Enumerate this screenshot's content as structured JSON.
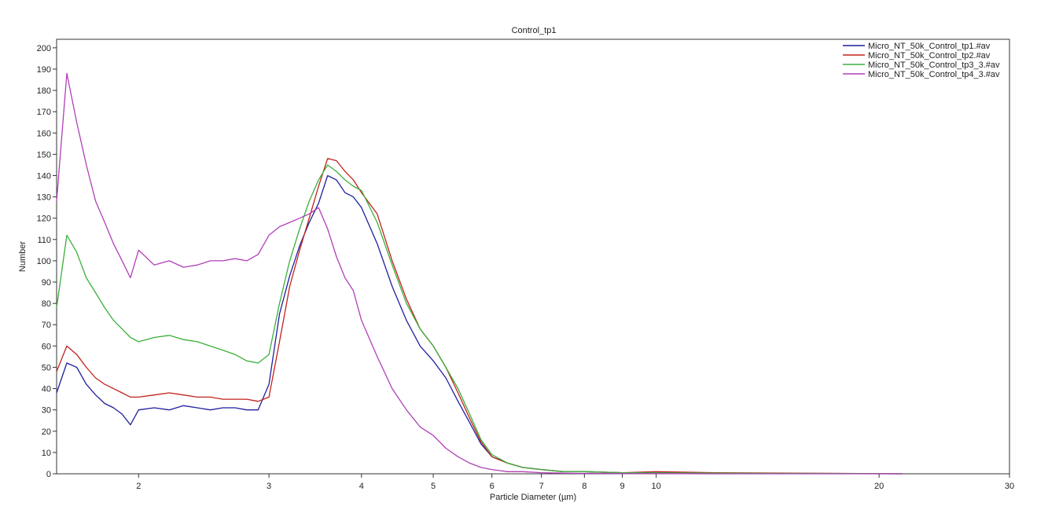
{
  "chart_data": {
    "type": "line",
    "title": "Control_tp1",
    "xlabel": "Particle Diameter (µm)",
    "ylabel": "Number",
    "xscale": "log",
    "xlim": [
      1.55,
      30
    ],
    "ylim": [
      0,
      204
    ],
    "xticks": [
      2,
      3,
      4,
      5,
      6,
      7,
      8,
      9,
      10,
      20,
      30
    ],
    "yticks": [
      0,
      10,
      20,
      30,
      40,
      50,
      60,
      70,
      80,
      90,
      100,
      110,
      120,
      130,
      140,
      150,
      160,
      170,
      180,
      190,
      200
    ],
    "grid": false,
    "legend_position": "top-right",
    "series": [
      {
        "name": "Micro_NT_50k_Control_tp1.#av",
        "color": "#1f1f9e",
        "x": [
          1.55,
          1.6,
          1.65,
          1.7,
          1.75,
          1.8,
          1.85,
          1.9,
          1.95,
          2.0,
          2.1,
          2.2,
          2.3,
          2.4,
          2.5,
          2.6,
          2.7,
          2.8,
          2.9,
          3.0,
          3.1,
          3.2,
          3.3,
          3.4,
          3.5,
          3.6,
          3.7,
          3.8,
          3.9,
          4.0,
          4.2,
          4.4,
          4.6,
          4.8,
          5.0,
          5.2,
          5.4,
          5.6,
          5.8,
          6.0,
          6.3,
          6.6,
          7.0,
          7.5,
          8.0,
          9.0,
          10.0,
          12.0,
          15.0,
          18.0,
          21.5
        ],
        "y": [
          38,
          52,
          50,
          42,
          37,
          33,
          31,
          28,
          23,
          30,
          31,
          30,
          32,
          31,
          30,
          31,
          31,
          30,
          30,
          42,
          75,
          93,
          107,
          118,
          127,
          140,
          138,
          132,
          130,
          125,
          108,
          88,
          72,
          60,
          53,
          45,
          34,
          24,
          14,
          8,
          5,
          3,
          2,
          1,
          1,
          0.5,
          0.5,
          0.3,
          0.2,
          0.1,
          0
        ]
      },
      {
        "name": "Micro_NT_50k_Control_tp2.#av",
        "color": "#c0221c",
        "x": [
          1.55,
          1.6,
          1.65,
          1.7,
          1.75,
          1.8,
          1.85,
          1.9,
          1.95,
          2.0,
          2.1,
          2.2,
          2.3,
          2.4,
          2.5,
          2.6,
          2.7,
          2.8,
          2.9,
          3.0,
          3.1,
          3.2,
          3.3,
          3.4,
          3.5,
          3.6,
          3.7,
          3.8,
          3.9,
          4.0,
          4.2,
          4.4,
          4.6,
          4.8,
          5.0,
          5.2,
          5.4,
          5.6,
          5.8,
          6.0,
          6.3,
          6.6,
          7.0,
          7.5,
          8.0,
          9.0,
          10.0,
          12.0,
          15.0,
          18.0,
          21.5
        ],
        "y": [
          48,
          60,
          56,
          50,
          45,
          42,
          40,
          38,
          36,
          36,
          37,
          38,
          37,
          36,
          36,
          35,
          35,
          35,
          34,
          36,
          62,
          88,
          105,
          120,
          135,
          148,
          147,
          142,
          138,
          132,
          122,
          100,
          82,
          68,
          60,
          50,
          38,
          26,
          15,
          8,
          5,
          3,
          2,
          1,
          1,
          0.5,
          1,
          0.5,
          0.3,
          0.2,
          0
        ]
      },
      {
        "name": "Micro_NT_50k_Control_tp3_3.#av",
        "color": "#3ab03a",
        "x": [
          1.55,
          1.6,
          1.65,
          1.7,
          1.75,
          1.8,
          1.85,
          1.9,
          1.95,
          2.0,
          2.1,
          2.2,
          2.3,
          2.4,
          2.5,
          2.6,
          2.7,
          2.8,
          2.9,
          3.0,
          3.1,
          3.2,
          3.3,
          3.4,
          3.5,
          3.6,
          3.7,
          3.8,
          3.9,
          4.0,
          4.2,
          4.4,
          4.6,
          4.8,
          5.0,
          5.2,
          5.4,
          5.6,
          5.8,
          6.0,
          6.3,
          6.6,
          7.0,
          7.5,
          8.0,
          9.0,
          10.0,
          12.0,
          15.0,
          18.0,
          21.5
        ],
        "y": [
          78,
          112,
          104,
          92,
          85,
          78,
          72,
          68,
          64,
          62,
          64,
          65,
          63,
          62,
          60,
          58,
          56,
          53,
          52,
          56,
          80,
          100,
          115,
          128,
          138,
          145,
          142,
          138,
          135,
          133,
          118,
          98,
          80,
          68,
          60,
          50,
          40,
          28,
          16,
          9,
          5,
          3,
          2,
          1,
          1,
          0.5,
          0.5,
          0.3,
          0.2,
          0.1,
          0
        ]
      },
      {
        "name": "Micro_NT_50k_Control_tp4_3.#av",
        "color": "#b040b8",
        "x": [
          1.55,
          1.6,
          1.65,
          1.7,
          1.75,
          1.8,
          1.85,
          1.9,
          1.95,
          2.0,
          2.1,
          2.2,
          2.3,
          2.4,
          2.5,
          2.6,
          2.7,
          2.8,
          2.9,
          3.0,
          3.1,
          3.2,
          3.3,
          3.4,
          3.5,
          3.6,
          3.7,
          3.8,
          3.9,
          4.0,
          4.2,
          4.4,
          4.6,
          4.8,
          5.0,
          5.2,
          5.4,
          5.6,
          5.8,
          6.0,
          6.3,
          6.6,
          7.0,
          7.5,
          8.0,
          9.0,
          10.0,
          12.0,
          15.0,
          18.0,
          21.5
        ],
        "y": [
          128,
          188,
          165,
          145,
          128,
          118,
          108,
          100,
          92,
          105,
          98,
          100,
          97,
          98,
          100,
          100,
          101,
          100,
          103,
          112,
          116,
          118,
          120,
          122,
          125,
          115,
          102,
          92,
          86,
          72,
          55,
          40,
          30,
          22,
          18,
          12,
          8,
          5,
          3,
          2,
          1,
          1,
          0.5,
          0.3,
          0.2,
          0.1,
          0.1,
          0,
          0,
          0,
          0
        ]
      }
    ]
  }
}
